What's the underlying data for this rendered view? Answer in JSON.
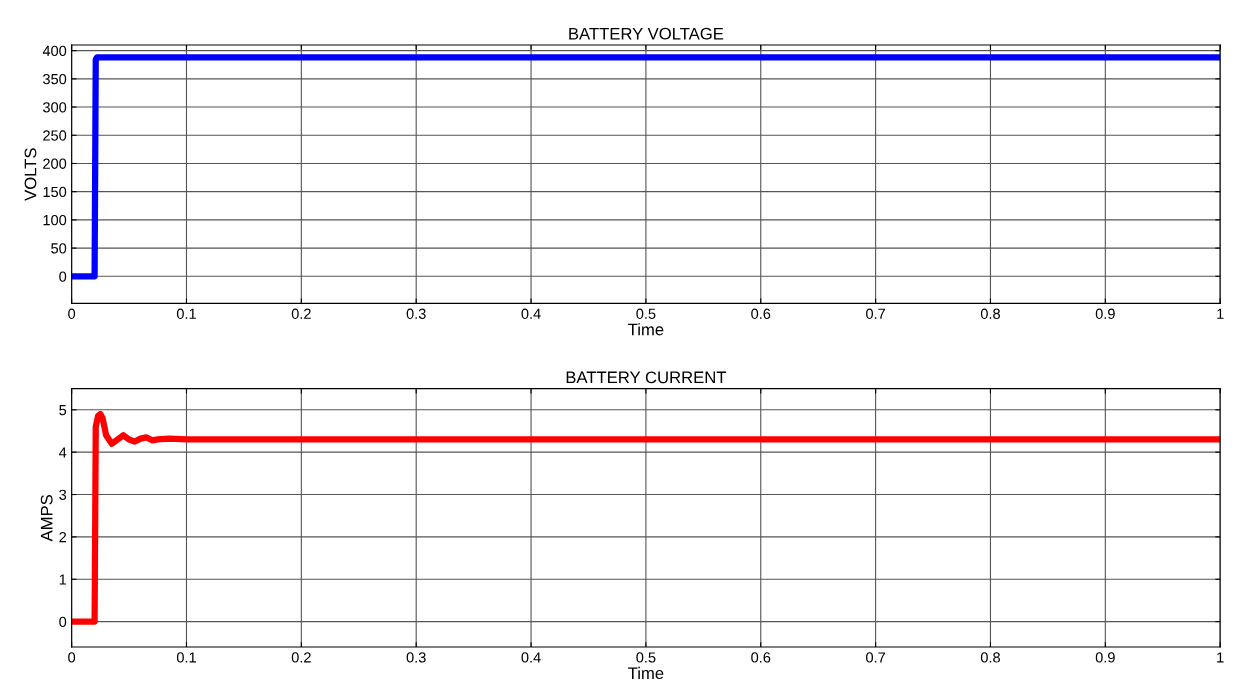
{
  "chart_data": [
    {
      "type": "line",
      "title": "BATTERY VOLTAGE",
      "xlabel": "Time",
      "ylabel": "VOLTS",
      "series": [
        {
          "color": "#0000ff",
          "x": [
            0,
            0.02,
            0.021,
            0.022,
            1
          ],
          "values": [
            0,
            0,
            384,
            388,
            388
          ]
        }
      ],
      "xlim": [
        0,
        1
      ],
      "xticks": [
        0,
        0.1,
        0.2,
        0.3,
        0.4,
        0.5,
        0.6,
        0.7,
        0.8,
        0.9,
        1
      ],
      "ylim": [
        -48,
        410
      ],
      "yticks": [
        0,
        50,
        100,
        150,
        200,
        250,
        300,
        350,
        400
      ],
      "grid": true,
      "line_style": "solid"
    },
    {
      "type": "line",
      "title": "BATTERY CURRENT",
      "xlabel": "Time",
      "ylabel": "AMPS",
      "series": [
        {
          "color": "#ff0000",
          "x": [
            0,
            0.02,
            0.021,
            0.023,
            0.025,
            0.027,
            0.03,
            0.035,
            0.04,
            0.045,
            0.05,
            0.055,
            0.06,
            0.065,
            0.07,
            0.075,
            0.085,
            0.1,
            1
          ],
          "values": [
            0,
            0,
            4.6,
            4.85,
            4.9,
            4.8,
            4.4,
            4.2,
            4.3,
            4.4,
            4.3,
            4.25,
            4.32,
            4.35,
            4.28,
            4.3,
            4.32,
            4.3,
            4.3
          ]
        }
      ],
      "xlim": [
        0,
        1
      ],
      "xticks": [
        0,
        0.1,
        0.2,
        0.3,
        0.4,
        0.5,
        0.6,
        0.7,
        0.8,
        0.9,
        1
      ],
      "ylim": [
        -0.6,
        5.5
      ],
      "yticks": [
        0,
        1,
        2,
        3,
        4,
        5
      ],
      "grid": true,
      "line_style": "solid"
    }
  ]
}
